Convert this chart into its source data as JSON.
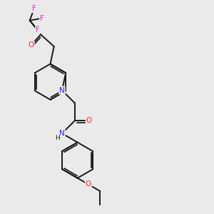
{
  "background_color": "#eaeaea",
  "bond_color": "#1a1a1a",
  "atom_colors": {
    "N": "#2020ff",
    "O": "#ff2020",
    "F": "#e020e0",
    "C": "#1a1a1a"
  },
  "figsize": [
    3.0,
    3.0
  ],
  "dpi": 100,
  "bond_lw": 1.4,
  "double_lw": 1.2,
  "font_size": 7.0
}
